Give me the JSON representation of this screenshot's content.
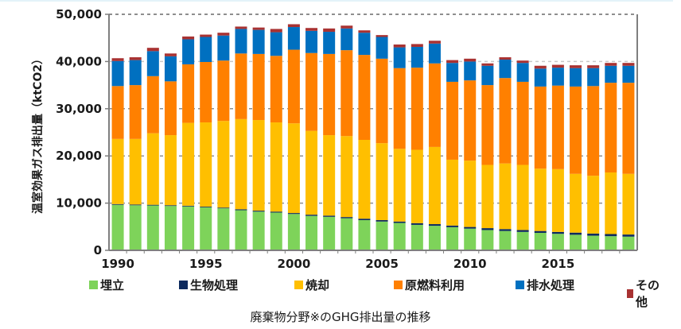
{
  "caption": "廃棄物分野※のGHG排出量の推移",
  "chart_data": {
    "type": "bar",
    "stacked": true,
    "title": "",
    "xlabel": "",
    "ylabel": "温室効果ガス排出量（ktCO2）",
    "ylim": [
      0,
      50000
    ],
    "yticks": [
      0,
      10000,
      20000,
      30000,
      40000,
      50000
    ],
    "ytick_labels": [
      "0",
      "10,000",
      "20,000",
      "30,000",
      "40,000",
      "50,000"
    ],
    "xtick_labels": [
      "1990",
      "1995",
      "2000",
      "2005",
      "2010",
      "2015"
    ],
    "grid": true,
    "legend_position": "bottom",
    "categories": [
      "1990",
      "1991",
      "1992",
      "1993",
      "1994",
      "1995",
      "1996",
      "1997",
      "1998",
      "1999",
      "2000",
      "2001",
      "2002",
      "2003",
      "2004",
      "2005",
      "2006",
      "2007",
      "2008",
      "2009",
      "2010",
      "2011",
      "2012",
      "2013",
      "2014",
      "2015",
      "2016",
      "2017",
      "2018",
      "2019"
    ],
    "series": [
      {
        "name": "埋立",
        "color": "#7ed35a",
        "values": [
          9650,
          9550,
          9500,
          9400,
          9300,
          9100,
          8900,
          8500,
          8200,
          8000,
          7700,
          7300,
          7100,
          6800,
          6400,
          6100,
          5800,
          5400,
          5200,
          4900,
          4600,
          4300,
          4100,
          3900,
          3700,
          3500,
          3300,
          3100,
          3000,
          2900
        ]
      },
      {
        "name": "生物処理",
        "color": "#0d2a5e",
        "values": [
          150,
          150,
          150,
          150,
          150,
          150,
          150,
          200,
          200,
          200,
          200,
          250,
          250,
          250,
          300,
          300,
          300,
          350,
          350,
          350,
          350,
          400,
          400,
          400,
          400,
          400,
          450,
          450,
          450,
          450
        ]
      },
      {
        "name": "焼却",
        "color": "#ffbf00",
        "values": [
          13800,
          13900,
          15150,
          14850,
          17550,
          17850,
          18350,
          19100,
          19200,
          18900,
          19000,
          17750,
          17050,
          17150,
          16700,
          16300,
          15400,
          15550,
          16350,
          13950,
          14050,
          13400,
          13900,
          13800,
          13200,
          13300,
          12450,
          12250,
          13050,
          12850
        ]
      },
      {
        "name": "原燃料利用",
        "color": "#ff8000",
        "values": [
          11200,
          11400,
          12100,
          11400,
          12400,
          12800,
          12800,
          13900,
          14000,
          14100,
          15600,
          16500,
          17200,
          18200,
          18000,
          17900,
          17100,
          17400,
          17700,
          16500,
          17000,
          16900,
          18100,
          17600,
          17400,
          17700,
          18500,
          19000,
          19000,
          19300
        ]
      },
      {
        "name": "排水処理",
        "color": "#0070c0",
        "values": [
          5300,
          5300,
          5300,
          5300,
          5300,
          5300,
          5300,
          5200,
          5100,
          5000,
          4800,
          4700,
          4700,
          4600,
          4700,
          4600,
          4400,
          4400,
          4200,
          4000,
          4000,
          4100,
          3900,
          4000,
          3800,
          3800,
          3900,
          3800,
          3600,
          3600
        ]
      },
      {
        "name": "その他",
        "color": "#a83232",
        "values": [
          600,
          600,
          700,
          600,
          600,
          500,
          600,
          500,
          500,
          700,
          600,
          600,
          700,
          600,
          500,
          400,
          600,
          600,
          600,
          600,
          600,
          500,
          500,
          500,
          600,
          600,
          600,
          600,
          600,
          600
        ]
      }
    ]
  }
}
